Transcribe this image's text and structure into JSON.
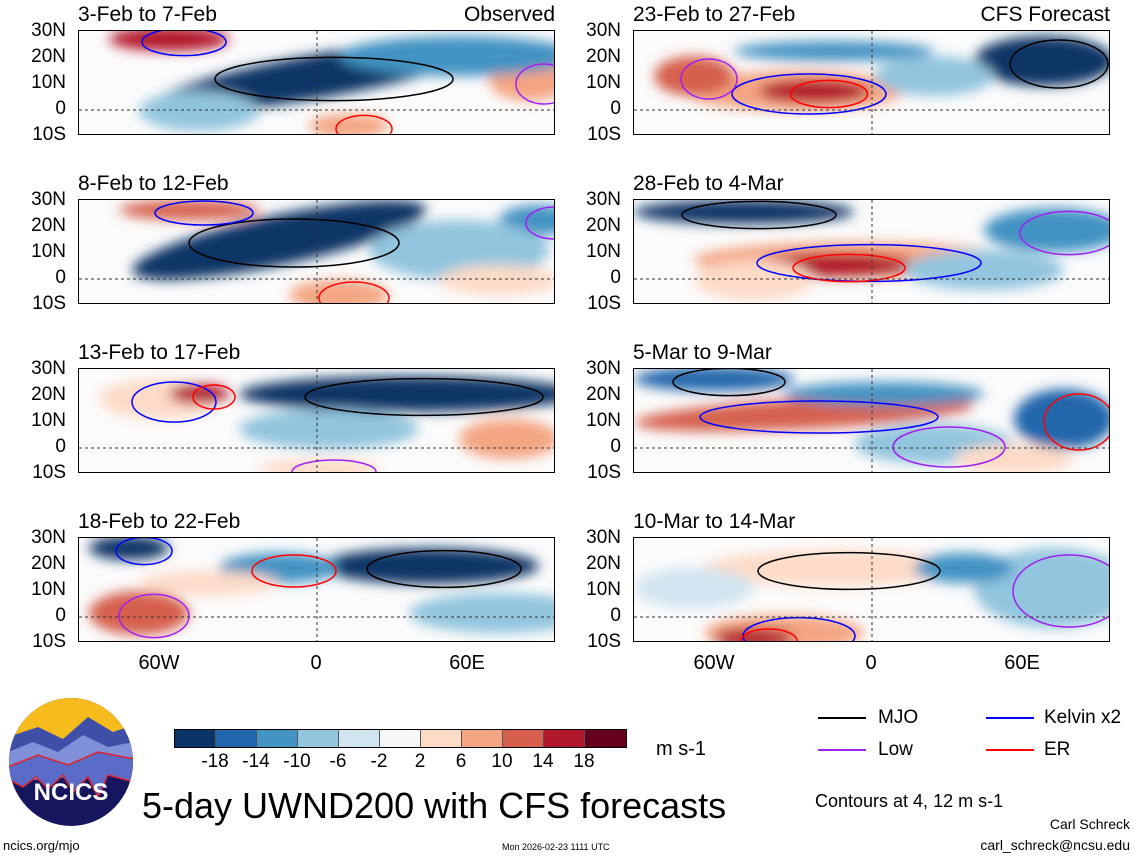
{
  "panels_left": [
    {
      "title": "3-Feb to 7-Feb",
      "tag": "Observed"
    },
    {
      "title": "8-Feb to 12-Feb"
    },
    {
      "title": "13-Feb to 17-Feb"
    },
    {
      "title": "18-Feb to 22-Feb"
    }
  ],
  "panels_right": [
    {
      "title": "23-Feb to 27-Feb",
      "tag": "CFS Forecast"
    },
    {
      "title": "28-Feb to 4-Mar"
    },
    {
      "title": "5-Mar to 9-Mar"
    },
    {
      "title": "10-Mar to 14-Mar"
    }
  ],
  "lat_ticks": [
    "30N",
    "20N",
    "10N",
    "0",
    "10S"
  ],
  "lon_ticks": [
    "60W",
    "0",
    "60E"
  ],
  "colorbar": {
    "labels": [
      "-18",
      "-14",
      "-10",
      "-6",
      "-2",
      "2",
      "6",
      "10",
      "14",
      "18"
    ],
    "colors": [
      "#0b3466",
      "#2166ac",
      "#4393c3",
      "#92c5de",
      "#d1e5f0",
      "#f7f7f7",
      "#fddbc7",
      "#f4a582",
      "#d6604d",
      "#b2182b",
      "#67001f"
    ],
    "units": "m s-1"
  },
  "legend": {
    "items": [
      {
        "label": "MJO",
        "color": "#000000"
      },
      {
        "label": "Kelvin x2",
        "color": "#0000ff"
      },
      {
        "label": "Low",
        "color": "#a020f0"
      },
      {
        "label": "ER",
        "color": "#ff0000"
      }
    ],
    "contours_note": "Contours at 4, 12 m s-1"
  },
  "title": "5-day UWND200 with CFS forecasts",
  "logo_text": "NCICS",
  "footer": {
    "url": "ncics.org/mjo",
    "timestamp": "Mon 2026-02-23 1111 UTC",
    "author": "Carl Schreck",
    "email": "carl_schreck@ncsu.edu"
  }
}
